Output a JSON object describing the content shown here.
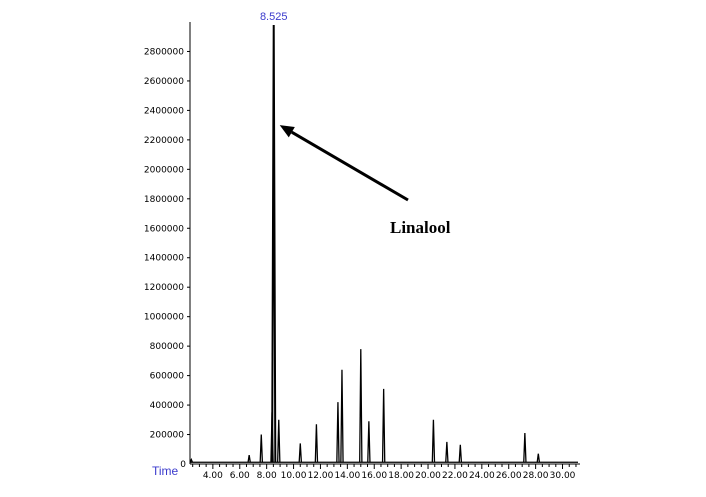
{
  "chart_data": {
    "type": "line",
    "title": "",
    "xlabel": "Time",
    "ylabel": "",
    "xlim": [
      2.3,
      31.3
    ],
    "ylim": [
      0,
      3000000
    ],
    "x_ticks": [
      "4.00",
      "6.00",
      "8.00",
      "10.00",
      "12.00",
      "14.00",
      "16.00",
      "18.00",
      "20.00",
      "22.00",
      "24.00",
      "26.00",
      "28.00",
      "30.00"
    ],
    "y_ticks": [
      "200000",
      "400000",
      "600000",
      "800000",
      "1000000",
      "1200000",
      "1400000",
      "1600000",
      "1800000",
      "2000000",
      "2200000",
      "2400000",
      "2600000",
      "2800000"
    ],
    "top_peak_label": "8.525",
    "annotation": {
      "text": "Linalool",
      "target_x": 8.525,
      "target_y": 2300000
    },
    "series": [
      {
        "values": [
          {
            "x": 2.4,
            "y": 30000
          },
          {
            "x": 6.7,
            "y": 60000
          },
          {
            "x": 7.6,
            "y": 200000
          },
          {
            "x": 8.4,
            "y": 350000
          },
          {
            "x": 8.525,
            "y": 2980000
          },
          {
            "x": 8.9,
            "y": 300000
          },
          {
            "x": 10.5,
            "y": 140000
          },
          {
            "x": 11.7,
            "y": 270000
          },
          {
            "x": 13.3,
            "y": 420000
          },
          {
            "x": 13.6,
            "y": 640000
          },
          {
            "x": 15.0,
            "y": 780000
          },
          {
            "x": 15.6,
            "y": 290000
          },
          {
            "x": 16.7,
            "y": 510000
          },
          {
            "x": 20.4,
            "y": 300000
          },
          {
            "x": 21.4,
            "y": 150000
          },
          {
            "x": 22.4,
            "y": 130000
          },
          {
            "x": 27.2,
            "y": 210000
          },
          {
            "x": 28.2,
            "y": 70000
          }
        ]
      }
    ]
  },
  "colors": {
    "trace": "#000000",
    "axis": "#000000",
    "blue_label": "#3a3acc",
    "marker": "#3333cc"
  }
}
